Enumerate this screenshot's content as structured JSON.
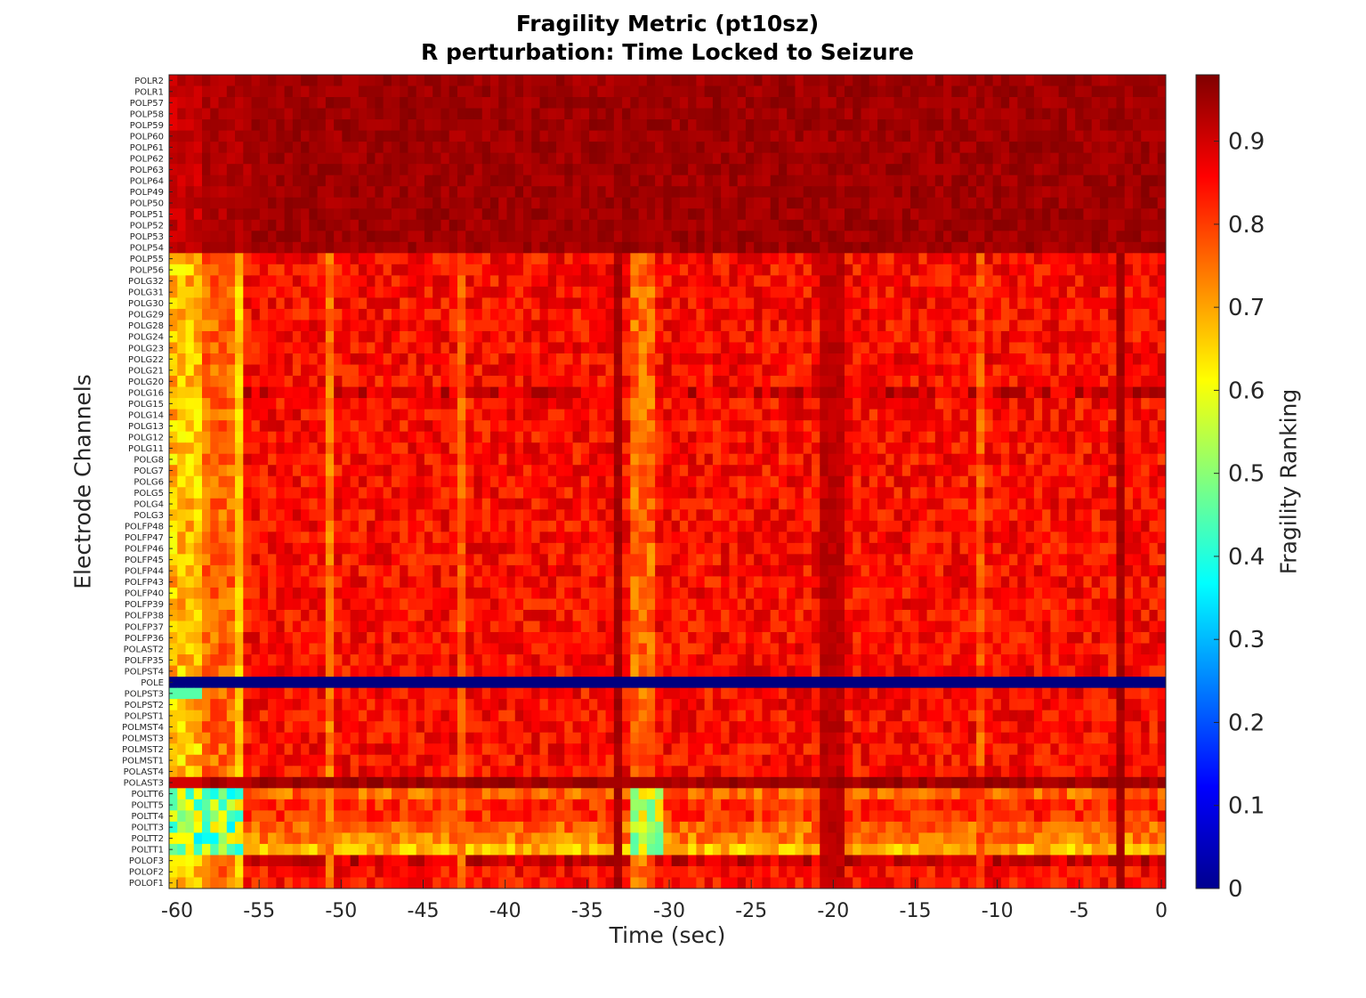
{
  "chart_data": {
    "type": "heatmap",
    "title": "Fragility Metric (pt10sz)",
    "subtitle": "R perturbation:  Time Locked to Seizure",
    "xlabel": "Time (sec)",
    "ylabel": "Electrode Channels",
    "colorbar_label": "Fragility Ranking",
    "colormap": "jet",
    "xlim": [
      -60,
      0
    ],
    "x_ticks": [
      -60,
      -55,
      -50,
      -45,
      -40,
      -35,
      -30,
      -25,
      -20,
      -15,
      -10,
      -5,
      0
    ],
    "color_range": [
      0,
      0.98
    ],
    "colorbar_ticks": [
      0,
      0.1,
      0.2,
      0.3,
      0.4,
      0.5,
      0.6,
      0.7,
      0.8,
      0.9
    ],
    "grid": false,
    "channels": [
      "POLR2",
      "POLR1",
      "POLP57",
      "POLP58",
      "POLP59",
      "POLP60",
      "POLP61",
      "POLP62",
      "POLP63",
      "POLP64",
      "POLP49",
      "POLP50",
      "POLP51",
      "POLP52",
      "POLP53",
      "POLP54",
      "POLP55",
      "POLP56",
      "POLG32",
      "POLG31",
      "POLG30",
      "POLG29",
      "POLG28",
      "POLG24",
      "POLG23",
      "POLG22",
      "POLG21",
      "POLG20",
      "POLG16",
      "POLG15",
      "POLG14",
      "POLG13",
      "POLG12",
      "POLG11",
      "POLG8",
      "POLG7",
      "POLG6",
      "POLG5",
      "POLG4",
      "POLG3",
      "POLFP48",
      "POLFP47",
      "POLFP46",
      "POLFP45",
      "POLFP44",
      "POLFP43",
      "POLFP40",
      "POLFP39",
      "POLFP38",
      "POLFP37",
      "POLFP36",
      "POLAST2",
      "POLFP35",
      "POLPST4",
      "POLE",
      "POLPST3",
      "POLPST2",
      "POLPST1",
      "POLMST4",
      "POLMST3",
      "POLMST2",
      "POLMST1",
      "POLAST4",
      "POLAST3",
      "POLTT6",
      "POLTT5",
      "POLTT4",
      "POLTT3",
      "POLTT2",
      "POLTT1",
      "POLOF3",
      "POLOF2",
      "POLOF1"
    ],
    "time_window": {
      "start": -60,
      "step": 0.5,
      "count": 121
    },
    "channel_base_values": {
      "POLR2": 0.95,
      "POLR1": 0.95,
      "POLP57": 0.95,
      "POLP58": 0.95,
      "POLP59": 0.95,
      "POLP60": 0.95,
      "POLP61": 0.95,
      "POLP62": 0.95,
      "POLP63": 0.95,
      "POLP64": 0.95,
      "POLP49": 0.95,
      "POLP50": 0.95,
      "POLP51": 0.95,
      "POLP52": 0.95,
      "POLP53": 0.95,
      "POLP54": 0.95,
      "POLP55": 0.85,
      "POLP56": 0.85,
      "POLG32": 0.85,
      "POLG31": 0.85,
      "POLG30": 0.85,
      "POLG29": 0.85,
      "POLG28": 0.85,
      "POLG24": 0.85,
      "POLG23": 0.85,
      "POLG22": 0.85,
      "POLG21": 0.85,
      "POLG20": 0.85,
      "POLG16": 0.9,
      "POLG15": 0.85,
      "POLG14": 0.85,
      "POLG13": 0.85,
      "POLG12": 0.85,
      "POLG11": 0.85,
      "POLG8": 0.85,
      "POLG7": 0.85,
      "POLG6": 0.85,
      "POLG5": 0.85,
      "POLG4": 0.85,
      "POLG3": 0.85,
      "POLFP48": 0.85,
      "POLFP47": 0.85,
      "POLFP46": 0.85,
      "POLFP45": 0.85,
      "POLFP44": 0.85,
      "POLFP43": 0.85,
      "POLFP40": 0.85,
      "POLFP39": 0.85,
      "POLFP38": 0.85,
      "POLFP37": 0.85,
      "POLFP36": 0.85,
      "POLAST2": 0.85,
      "POLFP35": 0.85,
      "POLPST4": 0.85,
      "POLE": 0.0,
      "POLPST3": 0.85,
      "POLPST2": 0.85,
      "POLPST1": 0.85,
      "POLMST4": 0.85,
      "POLMST3": 0.85,
      "POLMST2": 0.85,
      "POLMST1": 0.85,
      "POLAST4": 0.85,
      "POLAST3": 0.95,
      "POLTT6": 0.76,
      "POLTT5": 0.82,
      "POLTT4": 0.82,
      "POLTT3": 0.76,
      "POLTT2": 0.74,
      "POLTT1": 0.68,
      "POLOF3": 0.9,
      "POLOF2": 0.85,
      "POLOF1": 0.85
    },
    "time_features": [
      {
        "t_start": -60,
        "t_end": -55.5,
        "effect": "low values 0.45-0.7 in lower channels"
      },
      {
        "t_start": -56,
        "t_end": -55.5,
        "effect": "low values ~0.65"
      },
      {
        "t_start": -50.5,
        "t_end": -50,
        "effect": "low values ~0.7"
      },
      {
        "t_start": -42.5,
        "t_end": -42,
        "effect": "low values ~0.72"
      },
      {
        "t_start": -33,
        "t_end": -32.5,
        "effect": "high values ~0.94"
      },
      {
        "t_start": -32,
        "t_end": -30,
        "effect": "low values ~0.7"
      },
      {
        "t_start": -20.5,
        "t_end": -19,
        "effect": "high values ~0.92"
      },
      {
        "t_start": -11,
        "t_end": -10.5,
        "effect": "low values ~0.7"
      },
      {
        "t_start": -2.5,
        "t_end": -2,
        "effect": "high values ~0.94"
      }
    ]
  },
  "colors": {
    "background": "#ffffff",
    "axis": "#262626",
    "title": "#000000"
  }
}
